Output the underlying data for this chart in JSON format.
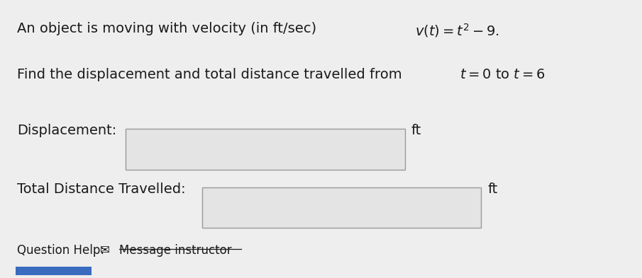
{
  "background_color": "#eeeeee",
  "label_displacement": "Displacement:",
  "label_total": "Total Distance Travelled:",
  "unit": "ft",
  "help_text": "Question Help:",
  "message_text": "Message instructor",
  "box_facecolor": "#e4e4e4",
  "box_edgecolor": "#999999",
  "text_color": "#1a1a1a",
  "blue_button_color": "#3a6bbf",
  "font_size_main": 14,
  "font_size_small": 12
}
